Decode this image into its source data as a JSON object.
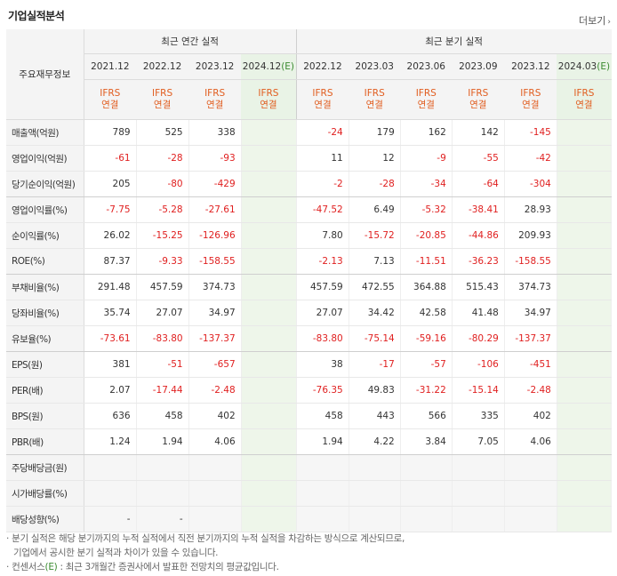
{
  "title": "기업실적분석",
  "more_label": "더보기",
  "row_header": "주요재무정보",
  "groups": {
    "annual": "최근 연간 실적",
    "quarterly": "최근 분기 실적"
  },
  "periods": [
    {
      "label": "2021.12",
      "e": ""
    },
    {
      "label": "2022.12",
      "e": ""
    },
    {
      "label": "2023.12",
      "e": ""
    },
    {
      "label": "2024.12",
      "e": "(E)"
    },
    {
      "label": "2022.12",
      "e": ""
    },
    {
      "label": "2023.03",
      "e": ""
    },
    {
      "label": "2023.06",
      "e": ""
    },
    {
      "label": "2023.09",
      "e": ""
    },
    {
      "label": "2023.12",
      "e": ""
    },
    {
      "label": "2024.03",
      "e": "(E)"
    }
  ],
  "ifrs": {
    "line1": "IFRS",
    "line2": "연결"
  },
  "rows": [
    {
      "label": "매출액(억원)",
      "values": [
        "789",
        "525",
        "338",
        "",
        "-24",
        "179",
        "162",
        "142",
        "-145",
        ""
      ]
    },
    {
      "label": "영업이익(억원)",
      "values": [
        "-61",
        "-28",
        "-93",
        "",
        "11",
        "12",
        "-9",
        "-55",
        "-42",
        ""
      ]
    },
    {
      "label": "당기순이익(억원)",
      "values": [
        "205",
        "-80",
        "-429",
        "",
        "-2",
        "-28",
        "-34",
        "-64",
        "-304",
        ""
      ]
    },
    {
      "label": "영업이익률(%)",
      "values": [
        "-7.75",
        "-5.28",
        "-27.61",
        "",
        "-47.52",
        "6.49",
        "-5.32",
        "-38.41",
        "28.93",
        ""
      ]
    },
    {
      "label": "순이익률(%)",
      "values": [
        "26.02",
        "-15.25",
        "-126.96",
        "",
        "7.80",
        "-15.72",
        "-20.85",
        "-44.86",
        "209.93",
        ""
      ]
    },
    {
      "label": "ROE(%)",
      "values": [
        "87.37",
        "-9.33",
        "-158.55",
        "",
        "-2.13",
        "7.13",
        "-11.51",
        "-36.23",
        "-158.55",
        ""
      ]
    },
    {
      "label": "부채비율(%)",
      "values": [
        "291.48",
        "457.59",
        "374.73",
        "",
        "457.59",
        "472.55",
        "364.88",
        "515.43",
        "374.73",
        ""
      ]
    },
    {
      "label": "당좌비율(%)",
      "values": [
        "35.74",
        "27.07",
        "34.97",
        "",
        "27.07",
        "34.42",
        "42.58",
        "41.48",
        "34.97",
        ""
      ]
    },
    {
      "label": "유보율(%)",
      "values": [
        "-73.61",
        "-83.80",
        "-137.37",
        "",
        "-83.80",
        "-75.14",
        "-59.16",
        "-80.29",
        "-137.37",
        ""
      ]
    },
    {
      "label": "EPS(원)",
      "values": [
        "381",
        "-51",
        "-657",
        "",
        "38",
        "-17",
        "-57",
        "-106",
        "-451",
        ""
      ]
    },
    {
      "label": "PER(배)",
      "values": [
        "2.07",
        "-17.44",
        "-2.48",
        "",
        "-76.35",
        "49.83",
        "-31.22",
        "-15.14",
        "-2.48",
        ""
      ]
    },
    {
      "label": "BPS(원)",
      "values": [
        "636",
        "458",
        "402",
        "",
        "458",
        "443",
        "566",
        "335",
        "402",
        ""
      ]
    },
    {
      "label": "PBR(배)",
      "values": [
        "1.24",
        "1.94",
        "4.06",
        "",
        "1.94",
        "4.22",
        "3.84",
        "7.05",
        "4.06",
        ""
      ]
    },
    {
      "label": "주당배당금(원)",
      "values": [
        "",
        "",
        "",
        "",
        "",
        "",
        "",
        "",
        "",
        ""
      ]
    },
    {
      "label": "시가배당률(%)",
      "values": [
        "",
        "",
        "",
        "",
        "",
        "",
        "",
        "",
        "",
        ""
      ]
    },
    {
      "label": "배당성향(%)",
      "values": [
        "-",
        "-",
        "",
        "",
        "",
        "",
        "",
        "",
        "",
        ""
      ]
    }
  ],
  "notes": {
    "line1": "분기 실적은 해당 분기까지의 누적 실적에서 직전 분기까지의 누적 실적을 차감하는 방식으로 계산되므로,",
    "line2": "기업에서 공시한 분기 실적과 차이가 있을 수 있습니다.",
    "line3_prefix": "컨센서스",
    "line3_e": "(E)",
    "line3_suffix": ": 최근 3개월간 증권사에서 발표한 전망치의 평균값입니다."
  },
  "colors": {
    "negative": "#e02020",
    "ifrs": "#e15d1f",
    "estimate_bg": "#e9f3e6",
    "estimate_text": "#3a8b30"
  }
}
